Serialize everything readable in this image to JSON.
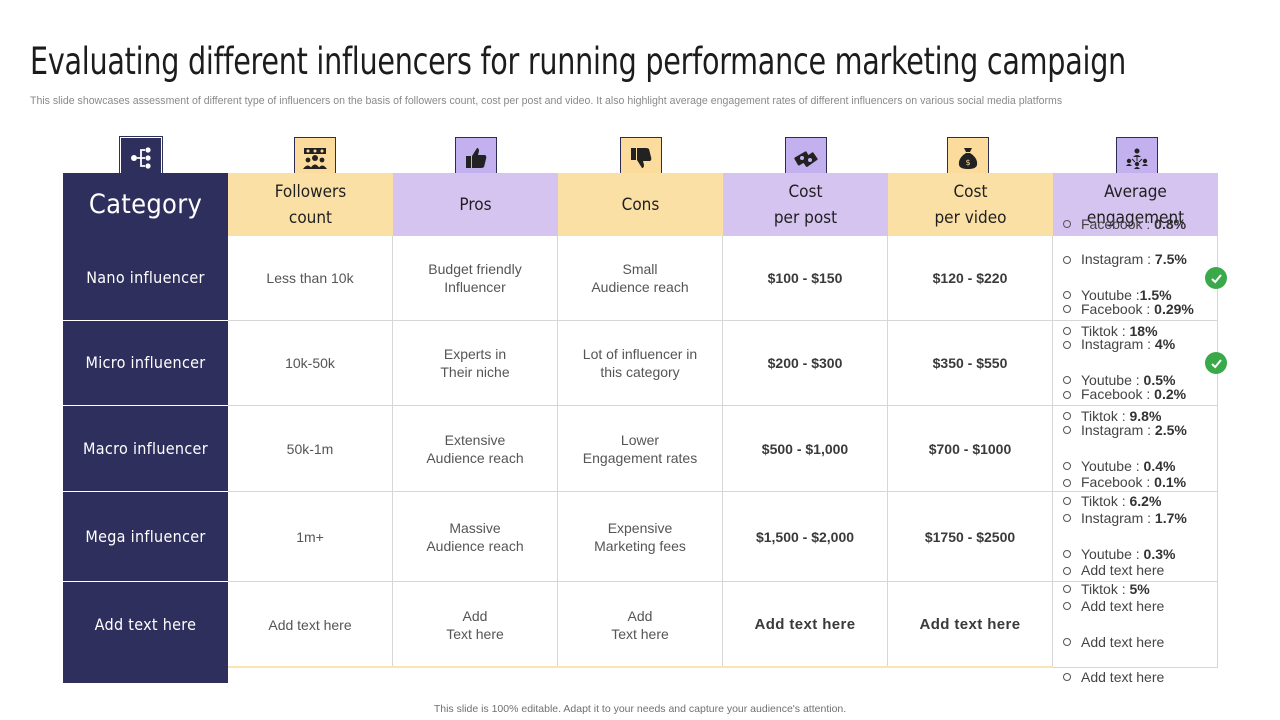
{
  "title": "Evaluating different influencers for running performance marketing campaign",
  "subtitle": "This slide showcases assessment of different type  of influencers on the basis of followers count, cost per post and video. It also highlight average engagement rates of different influencers on various social media platforms",
  "headers": [
    "Category",
    "Followers\ncount",
    "Pros",
    "Cons",
    "Cost\nper post",
    "Cost\nper video",
    "Average\nengagement"
  ],
  "header_icons": [
    "hierarchy-icon",
    "crowd-icon",
    "thumbs-up-icon",
    "thumbs-down-icon",
    "dollar-bills-icon",
    "money-bag-icon",
    "network-people-icon"
  ],
  "rows": [
    {
      "category": "Nano influencer",
      "followers": "Less than 10k",
      "pros": "Budget friendly\nInfluencer",
      "cons": "Small\nAudience reach",
      "cost_post": "$100 - $150",
      "cost_video": "$120 - $220",
      "engagement": [
        {
          "label": "Facebook : ",
          "value": "0.8%"
        },
        {
          "label": "Instagram : ",
          "value": "7.5%"
        },
        {
          "label": "Youtube :",
          "value": "1.5%"
        },
        {
          "label": "Tiktok : ",
          "value": "18%"
        }
      ],
      "check": true
    },
    {
      "category": "Micro influencer",
      "followers": "10k-50k",
      "pros": "Experts in\nTheir niche",
      "cons": "Lot of influencer in\nthis category",
      "cost_post": "$200 - $300",
      "cost_video": "$350 - $550",
      "engagement": [
        {
          "label": "Facebook : ",
          "value": "0.29%"
        },
        {
          "label": "Instagram : ",
          "value": "4%"
        },
        {
          "label": "Youtube  : ",
          "value": "0.5%"
        },
        {
          "label": "Tiktok : ",
          "value": "9.8%"
        }
      ],
      "check": true
    },
    {
      "category": "Macro influencer",
      "followers": "50k-1m",
      "pros": "Extensive\nAudience reach",
      "cons": "Lower\nEngagement rates",
      "cost_post": "$500 - $1,000",
      "cost_video": "$700 - $1000",
      "engagement": [
        {
          "label": "Facebook : ",
          "value": "0.2%"
        },
        {
          "label": "Instagram : ",
          "value": "2.5%"
        },
        {
          "label": "Youtube : ",
          "value": "0.4%"
        },
        {
          "label": "Tiktok : ",
          "value": "6.2%"
        }
      ],
      "check": false
    },
    {
      "category": "Mega influencer",
      "followers": "1m+",
      "pros": "Massive\nAudience reach",
      "cons": "Expensive\nMarketing fees",
      "cost_post": "$1,500 - $2,000",
      "cost_video": "$1750 - $2500",
      "engagement": [
        {
          "label": "Facebook : ",
          "value": "0.1%"
        },
        {
          "label": "Instagram : ",
          "value": "1.7%"
        },
        {
          "label": "Youtube : ",
          "value": "0.3%"
        },
        {
          "label": "Tiktok : ",
          "value": "5%"
        }
      ],
      "check": false
    },
    {
      "category": "Add text here",
      "followers": "Add text here",
      "pros": "Add\nText here",
      "cons": "Add\nText here",
      "cost_post": "Add  text here",
      "cost_video": "Add  text here",
      "engagement": [
        {
          "label": "Add text here",
          "value": ""
        },
        {
          "label": "Add text here",
          "value": ""
        },
        {
          "label": "Add text here",
          "value": ""
        },
        {
          "label": "Add text here",
          "value": ""
        }
      ],
      "check": false
    }
  ],
  "footer": "This slide is 100% editable. Adapt it to your needs and capture your audience's attention.",
  "colors": {
    "navy": "#2f2f5e",
    "yellow": "#fbe0a6",
    "purple": "#d5c3f0",
    "check_green": "#3aa94a"
  }
}
